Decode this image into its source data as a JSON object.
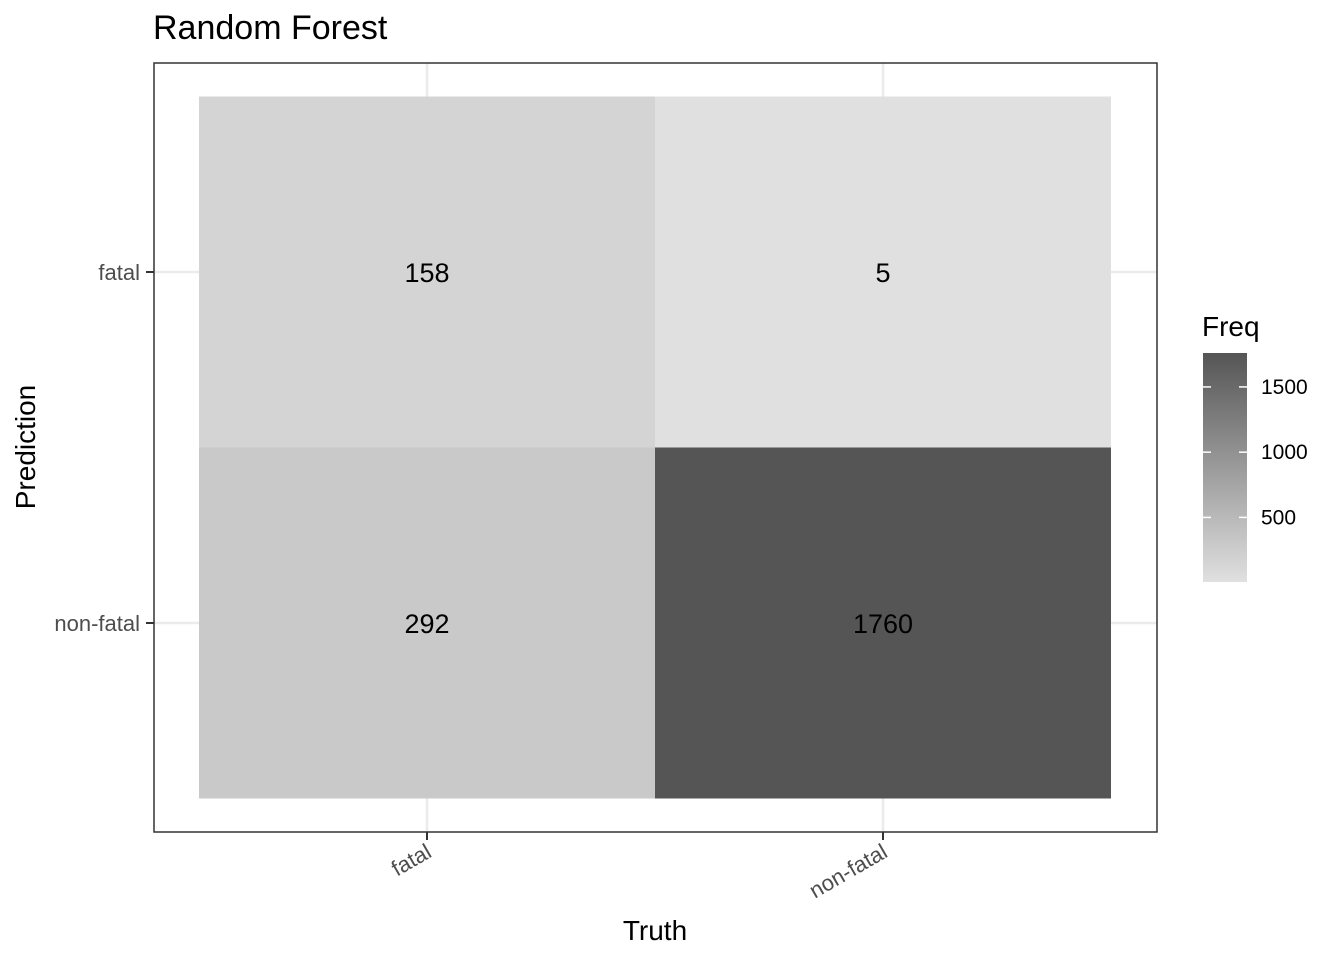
{
  "chart_data": {
    "type": "heatmap",
    "title": "Random Forest",
    "xlabel": "Truth",
    "ylabel": "Prediction",
    "x_categories": [
      "fatal",
      "non-fatal"
    ],
    "y_categories": [
      "fatal",
      "non-fatal"
    ],
    "cells": [
      {
        "truth": "fatal",
        "prediction": "fatal",
        "value": 158,
        "label": "158"
      },
      {
        "truth": "non-fatal",
        "prediction": "fatal",
        "value": 5,
        "label": "5"
      },
      {
        "truth": "fatal",
        "prediction": "non-fatal",
        "value": 292,
        "label": "292"
      },
      {
        "truth": "non-fatal",
        "prediction": "non-fatal",
        "value": 1760,
        "label": "1760"
      }
    ],
    "legend": {
      "title": "Freq",
      "placement": "right",
      "ticks": [
        500,
        1000,
        1500
      ],
      "tick_labels": [
        "500",
        "1000",
        "1500"
      ],
      "range": [
        5,
        1760
      ],
      "low_color": "#e0e0e0",
      "high_color": "#555555"
    },
    "grid": true,
    "panel_border": true
  }
}
